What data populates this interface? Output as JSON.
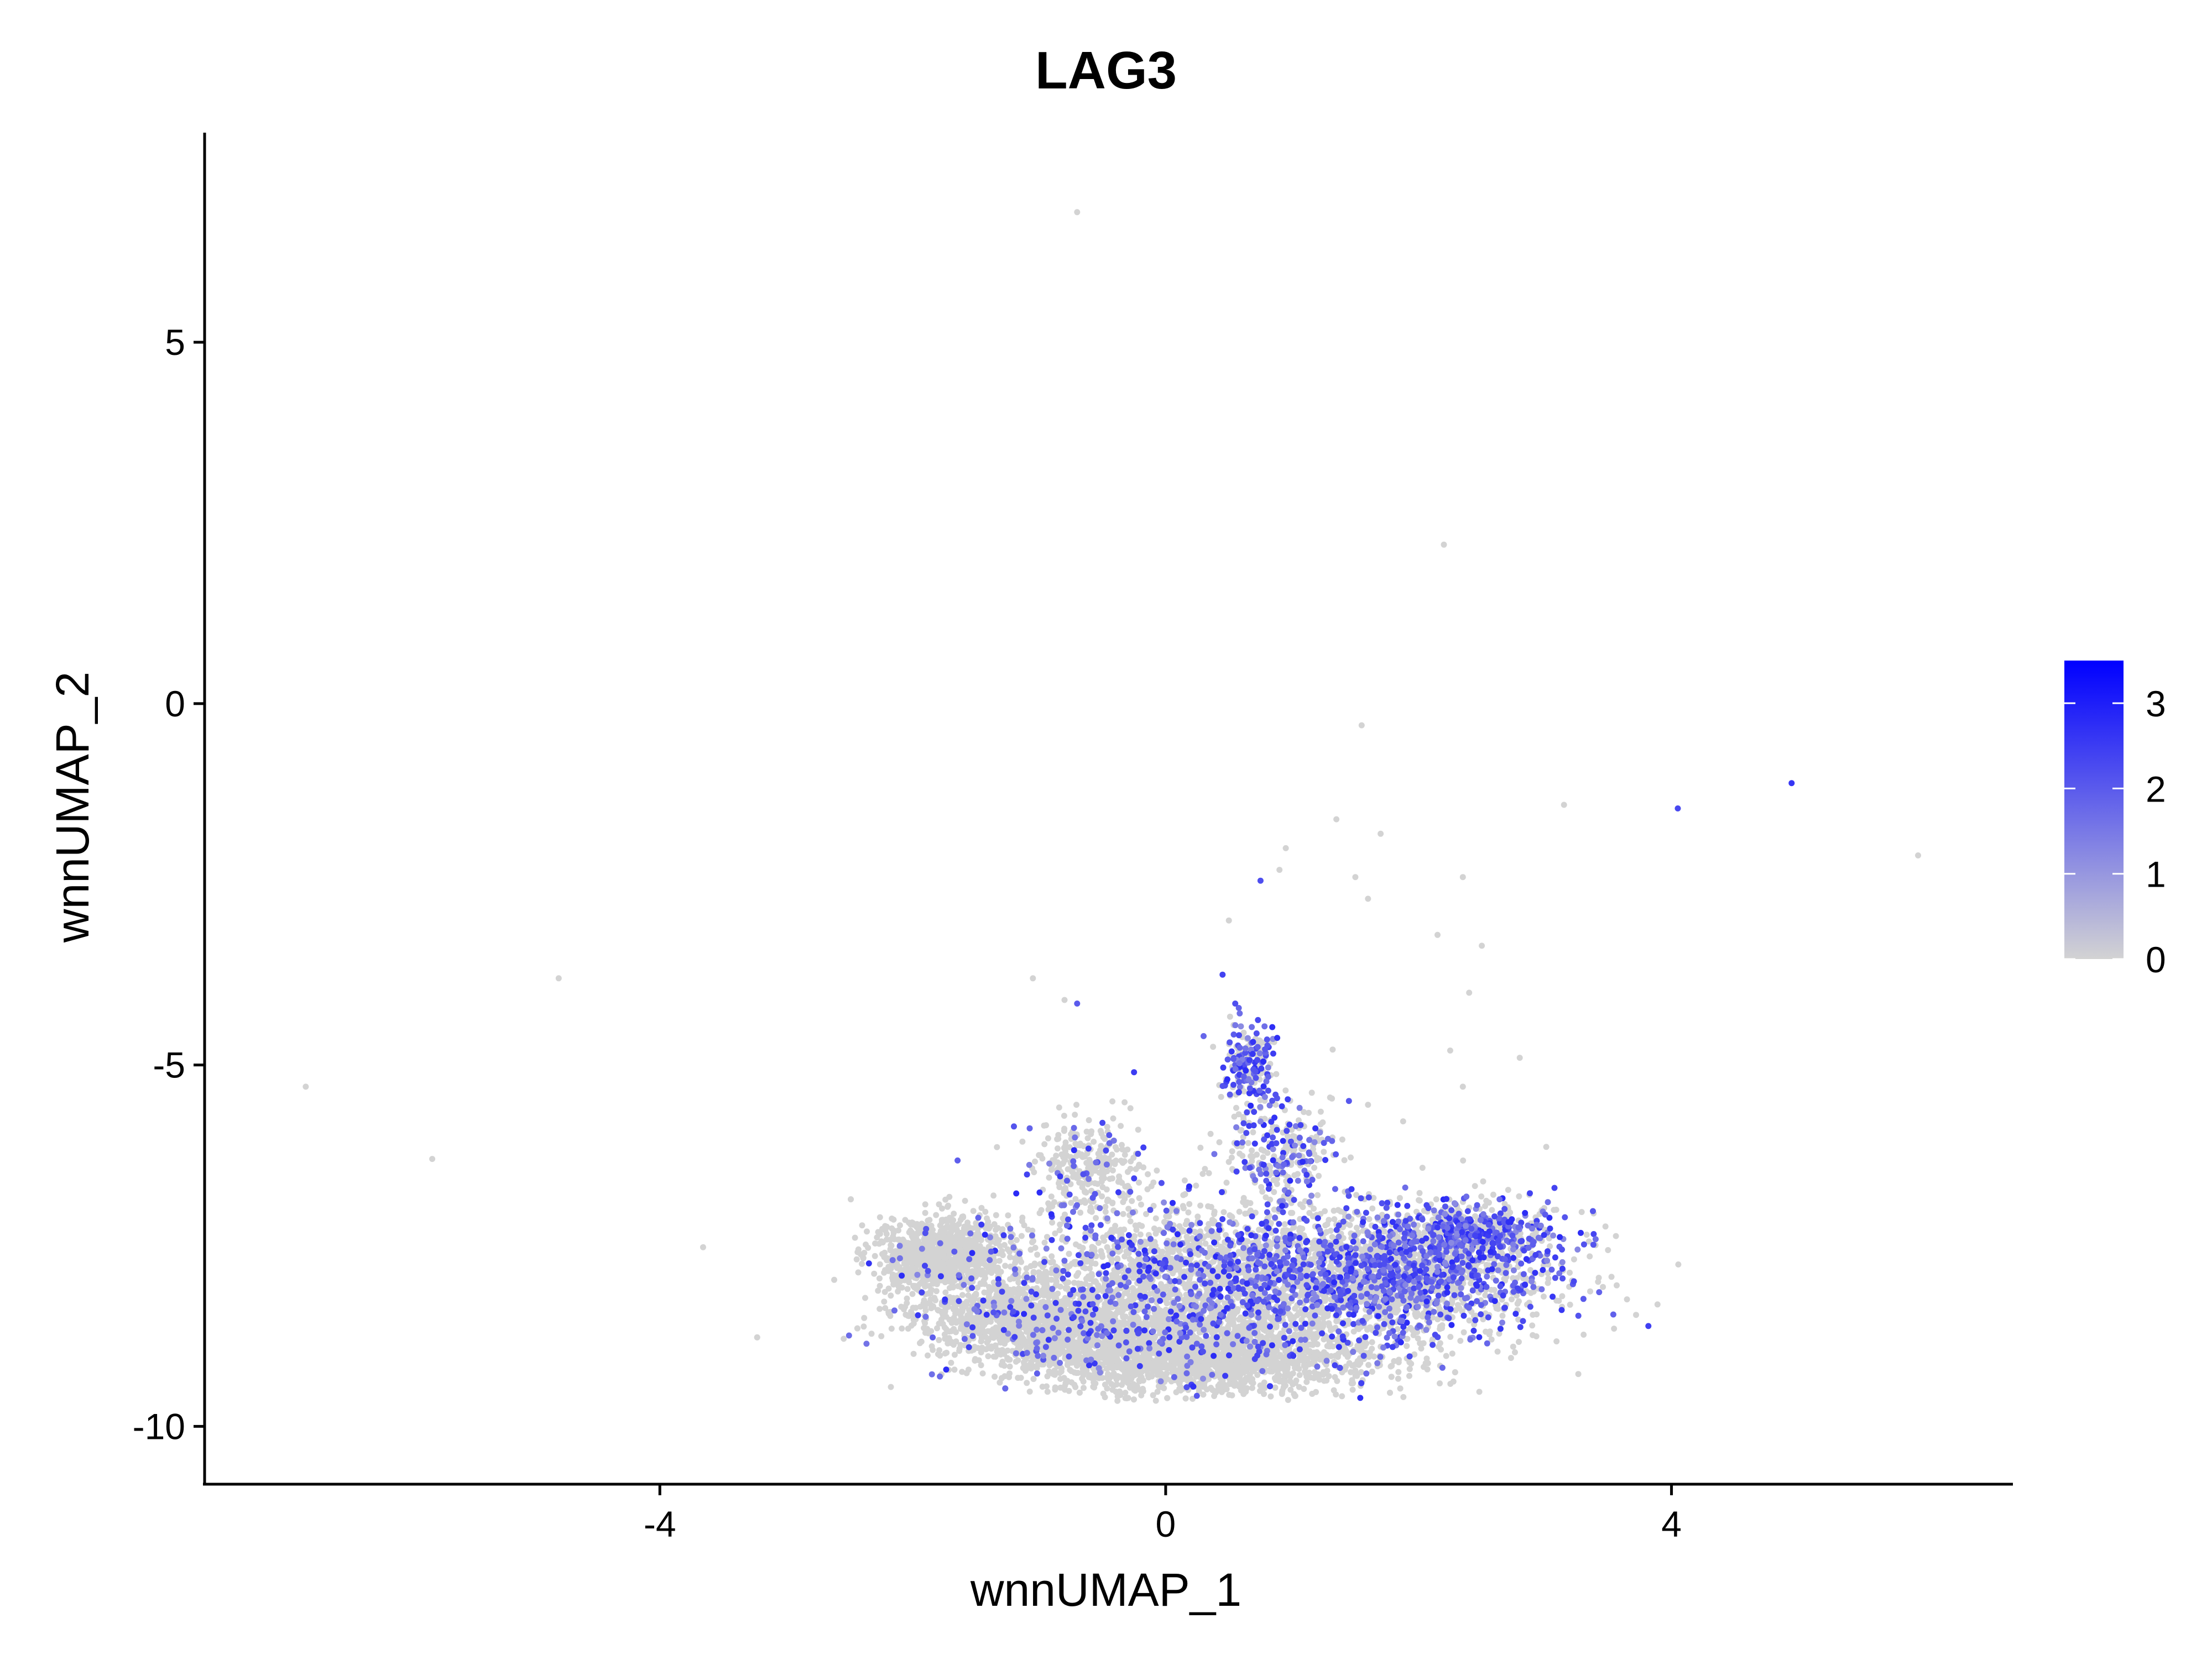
{
  "chart_data": {
    "type": "scatter",
    "title": "LAG3",
    "xlabel": "wnnUMAP_1",
    "ylabel": "wnnUMAP_2",
    "xlim": [
      -7.6,
      6.7
    ],
    "ylim": [
      -10.8,
      7.9
    ],
    "xticks": [
      "-4",
      "0",
      "4"
    ],
    "xtick_values": [
      -4,
      0,
      4
    ],
    "yticks": [
      "-10",
      "-5",
      "0",
      "5"
    ],
    "ytick_values": [
      -10,
      -5,
      0,
      5
    ],
    "grid": false,
    "legend": {
      "position": "right",
      "type": "colorbar",
      "range": [
        0,
        3.5
      ],
      "ticks": [
        "0",
        "1",
        "2",
        "3"
      ],
      "tick_values": [
        0,
        1,
        2,
        3
      ],
      "low_color": "#d3d3d3",
      "high_color": "#0000ff"
    },
    "colors": {
      "low": "#d3d3d3",
      "high": "#0000ff"
    },
    "points": [
      {
        "x": -6.8,
        "y": -5.3,
        "v": 0
      },
      {
        "x": -5.8,
        "y": -6.3,
        "v": 0
      },
      {
        "x": -4.8,
        "y": -3.8,
        "v": 0
      },
      {
        "x": -0.7,
        "y": 6.8,
        "v": 0
      },
      {
        "x": 2.2,
        "y": 2.2,
        "v": 0
      },
      {
        "x": 1.55,
        "y": -0.3,
        "v": 0
      },
      {
        "x": 3.15,
        "y": -1.4,
        "v": 0
      },
      {
        "x": 4.05,
        "y": -1.45,
        "v": 2.3
      },
      {
        "x": 4.95,
        "y": -1.1,
        "v": 2.6
      },
      {
        "x": 5.95,
        "y": -2.1,
        "v": 0
      },
      {
        "x": 1.35,
        "y": -1.6,
        "v": 0
      },
      {
        "x": 1.7,
        "y": -1.8,
        "v": 0
      },
      {
        "x": 0.95,
        "y": -2.0,
        "v": 0
      },
      {
        "x": 0.9,
        "y": -2.3,
        "v": 0
      },
      {
        "x": 1.5,
        "y": -2.4,
        "v": 0
      },
      {
        "x": 2.35,
        "y": -2.4,
        "v": 0
      },
      {
        "x": 1.6,
        "y": -2.7,
        "v": 0
      },
      {
        "x": 0.75,
        "y": -2.45,
        "v": 2.2
      },
      {
        "x": 0.5,
        "y": -3.0,
        "v": 0
      },
      {
        "x": 2.15,
        "y": -3.2,
        "v": 0
      },
      {
        "x": 2.5,
        "y": -3.35,
        "v": 0
      },
      {
        "x": 2.4,
        "y": -4.0,
        "v": 0
      },
      {
        "x": 2.25,
        "y": -4.8,
        "v": 0
      },
      {
        "x": 2.8,
        "y": -4.9,
        "v": 0
      },
      {
        "x": -1.05,
        "y": -3.8,
        "v": 0
      },
      {
        "x": -0.8,
        "y": -4.1,
        "v": 0
      },
      {
        "x": -0.7,
        "y": -4.15,
        "v": 2.0
      },
      {
        "x": 0.45,
        "y": -3.75,
        "v": 2.4
      },
      {
        "x": 0.55,
        "y": -4.15,
        "v": 2.2
      },
      {
        "x": 0.3,
        "y": -4.6,
        "v": 1.8
      },
      {
        "x": 1.3,
        "y": -5.45,
        "v": 0
      },
      {
        "x": 1.6,
        "y": -5.55,
        "v": 0
      },
      {
        "x": 2.35,
        "y": -5.3,
        "v": 0
      },
      {
        "x": -1.2,
        "y": -5.85,
        "v": 2.1
      },
      {
        "x": -0.5,
        "y": -5.8,
        "v": 2.3
      },
      {
        "x": -0.25,
        "y": -5.1,
        "v": 2.5
      }
    ],
    "clusters": [
      {
        "cx": -1.8,
        "cy": -7.6,
        "rx": 0.45,
        "ry": 0.45,
        "n": 900,
        "expr_frac": 0.02
      },
      {
        "cx": -1.0,
        "cy": -8.5,
        "rx": 0.9,
        "ry": 0.55,
        "n": 1200,
        "expr_frac": 0.06
      },
      {
        "cx": 0.2,
        "cy": -9.0,
        "rx": 1.3,
        "ry": 0.55,
        "n": 2600,
        "expr_frac": 0.05
      },
      {
        "cx": 0.3,
        "cy": -7.9,
        "rx": 1.5,
        "ry": 0.9,
        "n": 2200,
        "expr_frac": 0.22
      },
      {
        "cx": 1.8,
        "cy": -7.9,
        "rx": 1.15,
        "ry": 0.75,
        "n": 1900,
        "expr_frac": 0.38
      },
      {
        "cx": 2.4,
        "cy": -7.3,
        "rx": 0.55,
        "ry": 0.35,
        "n": 500,
        "expr_frac": 0.5
      },
      {
        "cx": -0.6,
        "cy": -6.4,
        "rx": 0.4,
        "ry": 0.6,
        "n": 300,
        "expr_frac": 0.1
      },
      {
        "cx": 0.65,
        "cy": -5.0,
        "rx": 0.18,
        "ry": 0.5,
        "n": 220,
        "expr_frac": 0.45
      },
      {
        "cx": 0.9,
        "cy": -6.2,
        "rx": 0.4,
        "ry": 0.6,
        "n": 260,
        "expr_frac": 0.4
      }
    ]
  }
}
